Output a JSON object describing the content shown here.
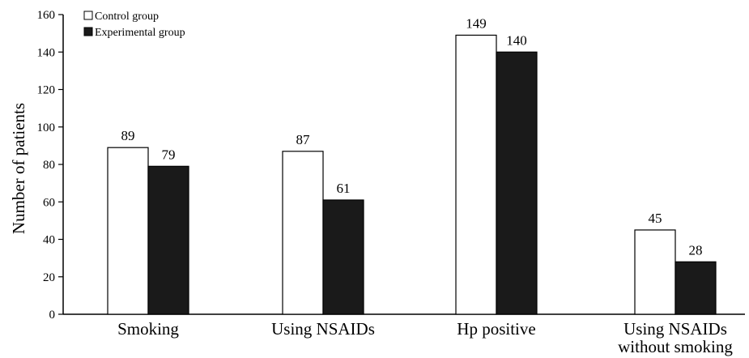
{
  "chart_data": {
    "type": "bar",
    "categories": [
      [
        "Smoking"
      ],
      [
        "Using NSAIDs"
      ],
      [
        "Hp positive"
      ],
      [
        "Using NSAIDs",
        "without smoking"
      ]
    ],
    "series": [
      {
        "name": "Control group",
        "values": [
          89,
          87,
          149,
          45
        ],
        "color": "#ffffff"
      },
      {
        "name": "Experimental group",
        "values": [
          79,
          61,
          140,
          28
        ],
        "color": "#1a1a1a"
      }
    ],
    "xlabel": "",
    "ylabel": "Number of patients",
    "ylim": [
      0,
      160
    ],
    "yticks": [
      0,
      20,
      40,
      60,
      80,
      100,
      120,
      140,
      160
    ],
    "grid": false,
    "legend_position": "top-left"
  }
}
